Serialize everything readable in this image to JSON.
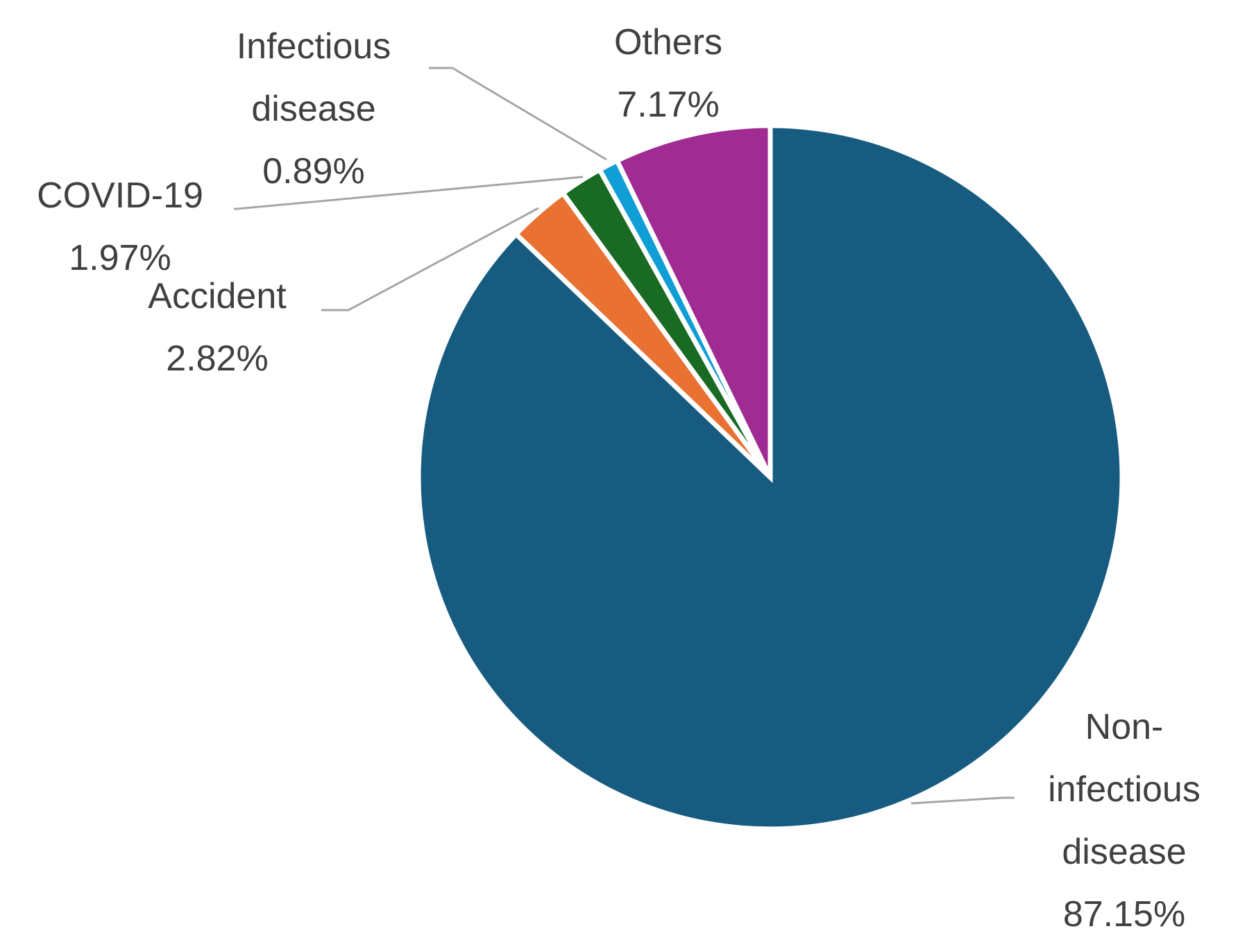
{
  "chart_data": {
    "type": "pie",
    "title": "",
    "start_angle_deg": 0,
    "direction": "clockwise",
    "slices": [
      {
        "name": "Non-infectious disease",
        "label_lines": [
          "Non-",
          "infectious",
          "disease"
        ],
        "value": 87.15,
        "value_label": "87.15%",
        "color": "#175c80"
      },
      {
        "name": "Accident",
        "label_lines": [
          "Accident"
        ],
        "value": 2.82,
        "value_label": "2.82%",
        "color": "#e97132"
      },
      {
        "name": "COVID-19",
        "label_lines": [
          "COVID-19"
        ],
        "value": 1.97,
        "value_label": "1.97%",
        "color": "#196b24"
      },
      {
        "name": "Infectious disease",
        "label_lines": [
          "Infectious",
          "disease"
        ],
        "value": 0.89,
        "value_label": "0.89%",
        "color": "#0f9ed5"
      },
      {
        "name": "Others",
        "label_lines": [
          "Others"
        ],
        "value": 7.17,
        "value_label": "7.17%",
        "color": "#a02b93"
      }
    ],
    "legend": "none",
    "data_labels": "outside-with-leader-lines"
  }
}
